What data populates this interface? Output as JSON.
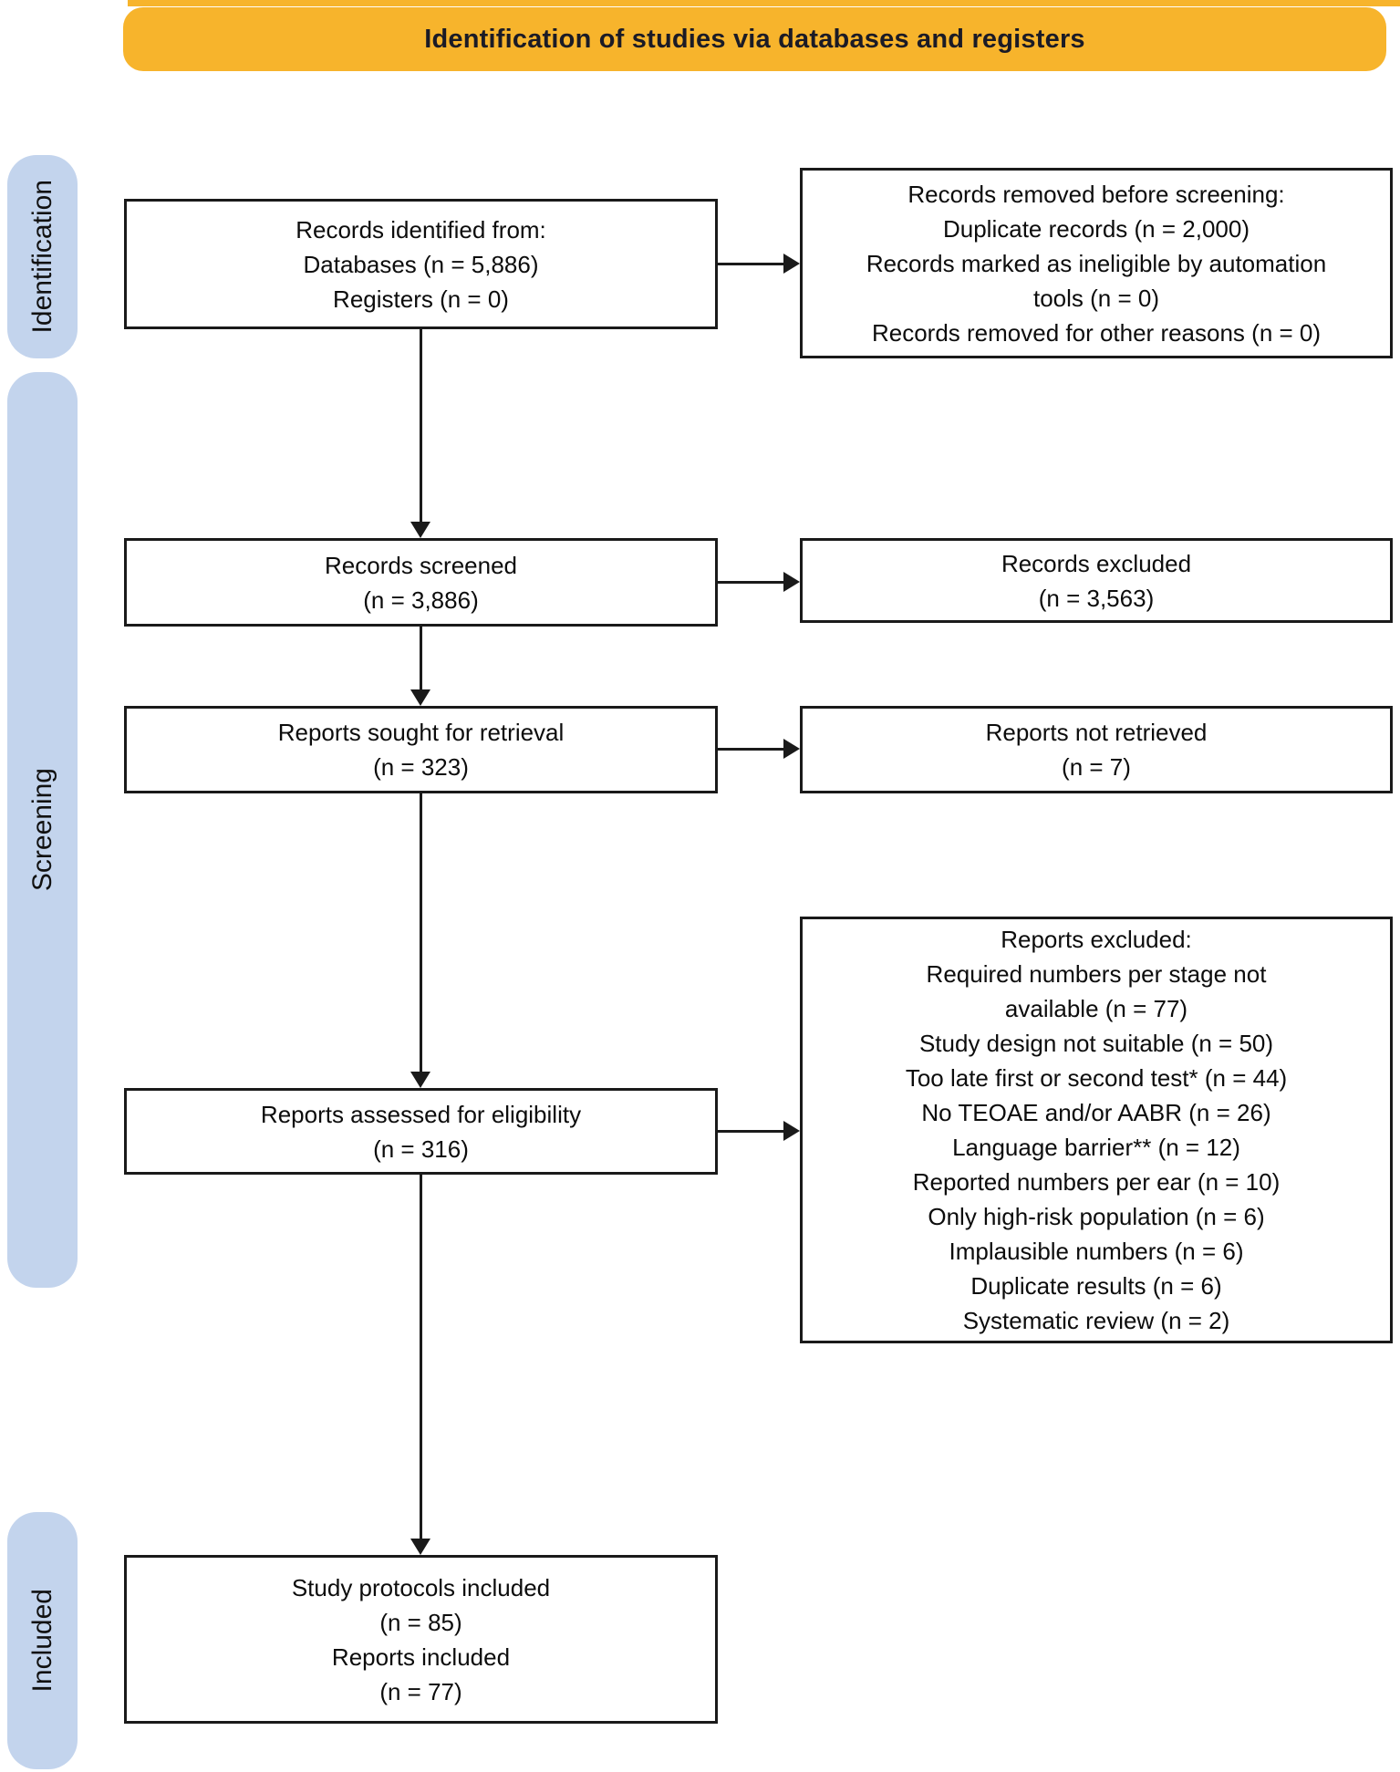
{
  "banner": {
    "title": "Identification of studies via databases and registers",
    "bg_color": "#F7B42C",
    "text_color": "#1b1b26"
  },
  "sidebar": {
    "bg_color": "#C3D4ED",
    "labels": [
      {
        "id": "identification",
        "text": "Identification"
      },
      {
        "id": "screening",
        "text": "Screening"
      },
      {
        "id": "included",
        "text": "Included"
      }
    ]
  },
  "boxes": {
    "records_identified": {
      "lines": [
        "Records identified from:",
        "Databases (n = 5,886)",
        "Registers (n = 0)"
      ]
    },
    "records_removed": {
      "lines": [
        "Records removed before screening:",
        "Duplicate records (n = 2,000)",
        "Records marked as ineligible by automation",
        "tools (n = 0)",
        "Records removed for other reasons (n = 0)"
      ]
    },
    "records_screened": {
      "lines": [
        "Records screened",
        "(n = 3,886)"
      ]
    },
    "records_excluded": {
      "lines": [
        "Records excluded",
        "(n = 3,563)"
      ]
    },
    "reports_sought": {
      "lines": [
        "Reports sought for retrieval",
        "(n = 323)"
      ]
    },
    "reports_not_retrieved": {
      "lines": [
        "Reports not retrieved",
        "(n = 7)"
      ]
    },
    "reports_assessed": {
      "lines": [
        "Reports assessed for eligibility",
        "(n = 316)"
      ]
    },
    "reports_excluded": {
      "lines": [
        "Reports excluded:",
        "Required numbers per stage not",
        "available (n = 77)",
        "Study design not suitable (n = 50)",
        "Too late first or second test* (n = 44)",
        "No TEOAE and/or AABR (n = 26)",
        "Language barrier** (n = 12)",
        "Reported numbers per ear (n = 10)",
        "Only high-risk population (n = 6)",
        "Implausible numbers (n = 6)",
        "Duplicate results (n = 6)",
        "Systematic review (n = 2)"
      ]
    },
    "included_studies": {
      "lines": [
        "Study protocols included",
        "(n = 85)",
        "Reports included",
        "(n = 77)"
      ]
    }
  }
}
